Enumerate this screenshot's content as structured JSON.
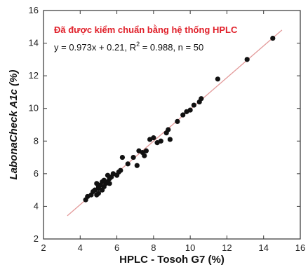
{
  "chart_data": {
    "type": "scatter",
    "title": "",
    "xlabel": "HPLC - Tosoh G7 (%)",
    "ylabel": "LabonaCheck A1c (%)",
    "xlim": [
      2,
      16
    ],
    "ylim": [
      2,
      16
    ],
    "xticks": [
      2,
      4,
      6,
      8,
      10,
      12,
      14,
      16
    ],
    "yticks": [
      2,
      4,
      6,
      8,
      10,
      12,
      14,
      16
    ],
    "grid": false,
    "annotations": {
      "headline": "Đã được kiểm chuẩn bằng hệ thống HPLC",
      "equation_prefix": "y = 0.973x + 0.21, R",
      "equation_sup": "2",
      "equation_suffix": " = 0.988, n = 50"
    },
    "regression": {
      "slope": 0.973,
      "intercept": 0.21,
      "x_range": [
        3.3,
        15.0
      ]
    },
    "colors": {
      "points": "#111111",
      "regression_line": "#e39a9a",
      "headline": "#e0202a"
    },
    "points": [
      [
        4.3,
        4.4
      ],
      [
        4.4,
        4.6
      ],
      [
        4.6,
        4.7
      ],
      [
        4.9,
        4.7
      ],
      [
        5.0,
        4.8
      ],
      [
        4.8,
        5.0
      ],
      [
        5.0,
        5.2
      ],
      [
        5.1,
        5.3
      ],
      [
        4.9,
        5.4
      ],
      [
        5.2,
        5.0
      ],
      [
        5.3,
        5.2
      ],
      [
        5.4,
        5.4
      ],
      [
        5.5,
        5.5
      ],
      [
        5.3,
        5.6
      ],
      [
        5.6,
        5.7
      ],
      [
        5.7,
        5.8
      ],
      [
        5.5,
        5.9
      ],
      [
        5.8,
        6.0
      ],
      [
        6.0,
        5.9
      ],
      [
        6.1,
        6.1
      ],
      [
        6.3,
        7.0
      ],
      [
        6.6,
        6.6
      ],
      [
        6.9,
        7.0
      ],
      [
        7.1,
        6.5
      ],
      [
        7.2,
        7.4
      ],
      [
        7.4,
        7.3
      ],
      [
        7.6,
        7.4
      ],
      [
        7.8,
        8.1
      ],
      [
        8.0,
        8.2
      ],
      [
        8.2,
        7.9
      ],
      [
        8.4,
        8.0
      ],
      [
        8.7,
        8.5
      ],
      [
        8.8,
        8.7
      ],
      [
        8.9,
        8.1
      ],
      [
        9.3,
        9.2
      ],
      [
        9.6,
        9.6
      ],
      [
        9.8,
        9.8
      ],
      [
        10.0,
        9.9
      ],
      [
        10.2,
        10.2
      ],
      [
        10.5,
        10.4
      ],
      [
        10.6,
        10.6
      ],
      [
        11.5,
        11.8
      ],
      [
        13.1,
        13.0
      ],
      [
        14.5,
        14.3
      ],
      [
        5.0,
        5.1
      ],
      [
        5.2,
        5.5
      ],
      [
        5.6,
        5.4
      ],
      [
        4.7,
        4.9
      ],
      [
        6.2,
        6.2
      ],
      [
        7.5,
        7.1
      ]
    ]
  }
}
